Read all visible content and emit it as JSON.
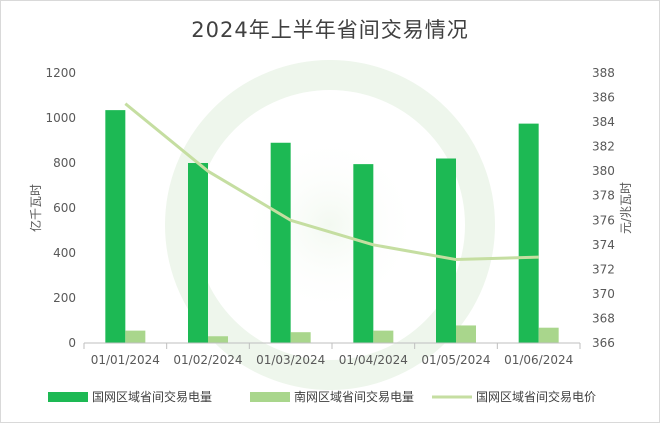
{
  "chart_data": {
    "type": "bar+line",
    "title": "2024年上半年省间交易情况",
    "categories": [
      "01/01/2024",
      "01/02/2024",
      "01/03/2024",
      "01/04/2024",
      "01/05/2024",
      "01/06/2024"
    ],
    "series": [
      {
        "name": "国网区域省间交易电量",
        "type": "bar",
        "axis": "left",
        "color": "#1db954",
        "values": [
          1035,
          800,
          890,
          795,
          820,
          975
        ]
      },
      {
        "name": "南网区域省间交易电量",
        "type": "bar",
        "axis": "left",
        "color": "#a9d68c",
        "values": [
          55,
          30,
          48,
          55,
          78,
          68
        ]
      },
      {
        "name": "国网区域省间交易电价",
        "type": "line",
        "axis": "right",
        "color": "#c5dea1",
        "values": [
          385.5,
          380,
          376,
          374,
          372.8,
          373
        ]
      }
    ],
    "ylabel": "亿千瓦时",
    "y2label": "元/兆瓦时",
    "ylim": [
      0,
      1200
    ],
    "y2lim": [
      366,
      388
    ],
    "yticks": [
      "0",
      "200",
      "400",
      "600",
      "800",
      "1000",
      "1200"
    ],
    "y2ticks": [
      "366",
      "368",
      "370",
      "372",
      "374",
      "376",
      "378",
      "380",
      "382",
      "384",
      "386",
      "388"
    ],
    "legend_position": "bottom",
    "grid": false
  }
}
